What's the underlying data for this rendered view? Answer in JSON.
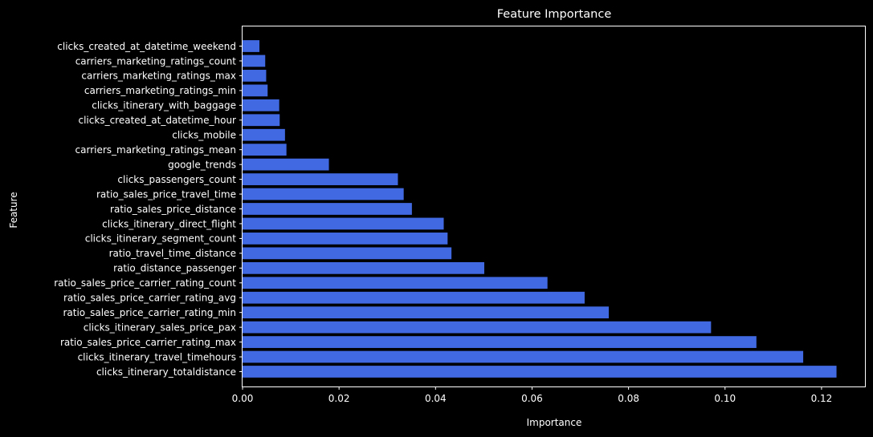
{
  "chart_data": {
    "type": "bar",
    "orientation": "horizontal",
    "title": "Feature Importance",
    "xlabel": "Importance",
    "ylabel": "Feature",
    "xlim": [
      0,
      0.129
    ],
    "xticks": [
      0.0,
      0.02,
      0.04,
      0.06,
      0.08,
      0.1,
      0.12
    ],
    "xtick_labels": [
      "0.00",
      "0.02",
      "0.04",
      "0.06",
      "0.08",
      "0.10",
      "0.12"
    ],
    "grid": false,
    "bar_color": "#4169e1",
    "background_color": "#000000",
    "text_color": "#ffffff",
    "categories": [
      "clicks_itinerary_totaldistance",
      "clicks_itinerary_travel_timehours",
      "ratio_sales_price_carrier_rating_max",
      "clicks_itinerary_sales_price_pax",
      "ratio_sales_price_carrier_rating_min",
      "ratio_sales_price_carrier_rating_avg",
      "ratio_sales_price_carrier_rating_count",
      "ratio_distance_passenger",
      "ratio_travel_time_distance",
      "clicks_itinerary_segment_count",
      "clicks_itinerary_direct_flight",
      "ratio_sales_price_distance",
      "ratio_sales_price_travel_time",
      "clicks_passengers_count",
      "google_trends",
      "carriers_marketing_ratings_mean",
      "clicks_mobile",
      "clicks_created_at_datetime_hour",
      "clicks_itinerary_with_baggage",
      "carriers_marketing_ratings_min",
      "carriers_marketing_ratings_max",
      "carriers_marketing_ratings_count",
      "clicks_created_at_datetime_weekend"
    ],
    "values": [
      0.1231,
      0.1162,
      0.1065,
      0.0971,
      0.0759,
      0.0709,
      0.0632,
      0.0501,
      0.0433,
      0.0425,
      0.0417,
      0.0351,
      0.0334,
      0.0322,
      0.0179,
      0.0091,
      0.0088,
      0.0077,
      0.0076,
      0.0052,
      0.0049,
      0.0047,
      0.0035
    ]
  }
}
